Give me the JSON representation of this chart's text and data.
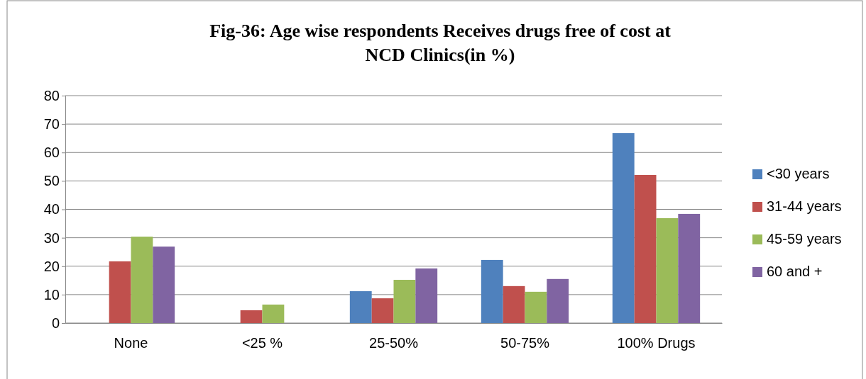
{
  "chart_data": {
    "type": "bar",
    "title": "Fig-36: Age wise respondents Receives drugs free of cost at NCD Clinics(in %)",
    "categories": [
      "None",
      "<25 %",
      "25-50%",
      "50-75%",
      "100% Drugs"
    ],
    "series": [
      {
        "name": "<30 years",
        "color": "#4f81bd",
        "values": [
          0,
          0,
          11.2,
          22.2,
          66.8
        ]
      },
      {
        "name": "31-44 years",
        "color": "#c0504d",
        "values": [
          21.7,
          4.5,
          8.7,
          13.0,
          52.1
        ]
      },
      {
        "name": "45-59 years",
        "color": "#9bbb59",
        "values": [
          30.4,
          6.5,
          15.2,
          11.0,
          36.9
        ]
      },
      {
        "name": "60 and +",
        "color": "#8064a2",
        "values": [
          26.9,
          0,
          19.2,
          15.5,
          38.4
        ]
      }
    ],
    "ylim": [
      0,
      80
    ],
    "yticks": [
      0,
      10,
      20,
      30,
      40,
      50,
      60,
      70,
      80
    ],
    "grid": "y",
    "legend": "right"
  }
}
